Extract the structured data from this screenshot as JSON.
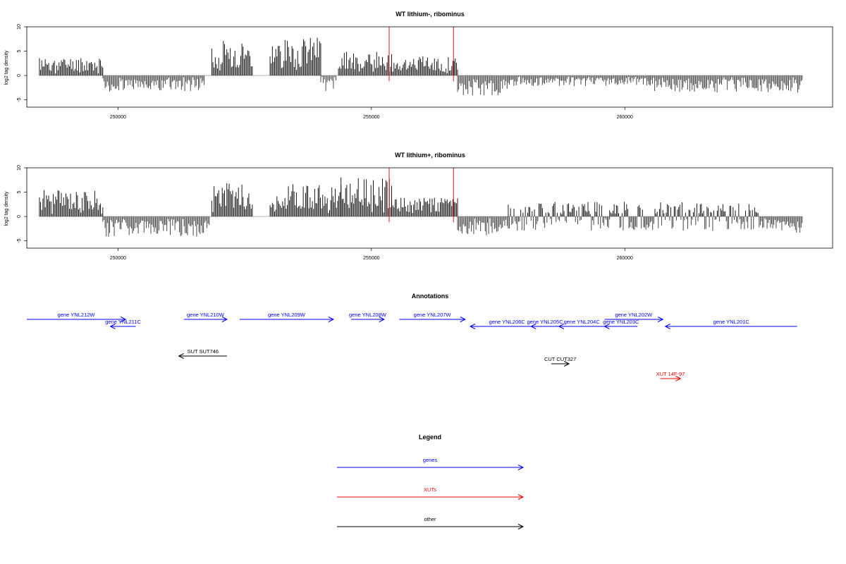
{
  "colors": {
    "positive_bar": "#000000",
    "negative_bar": "#333333",
    "marker": "#e31a1c",
    "genes": "#0000ff",
    "XUTs": "#ff0000",
    "other": "#000000"
  },
  "chart_data": [
    {
      "type": "bar",
      "title": "WT lithium-, ribominus",
      "xlabel": "",
      "ylabel": "log2 tag density",
      "xlim": [
        248200,
        264100
      ],
      "ylim": [
        -6.5,
        10
      ],
      "xticks": [
        250000,
        255000,
        260000
      ],
      "yticks": [
        -5,
        0,
        5,
        10
      ],
      "grid": false,
      "markers_x": [
        255350,
        256620
      ],
      "series": [
        {
          "x": [
            248450,
            249700
          ],
          "y": [
            3.5,
            3.2
          ],
          "seed": 11
        },
        {
          "x": [
            249700,
            251700
          ],
          "y": [
            -3.0,
            -3.0
          ],
          "seed": 12
        },
        {
          "x": [
            251850,
            252650
          ],
          "y": [
            7.5,
            6.0
          ],
          "seed": 13
        },
        {
          "x": [
            253000,
            254000
          ],
          "y": [
            6.5,
            7.5
          ],
          "seed": 14
        },
        {
          "x": [
            254000,
            254300
          ],
          "y": [
            -3.0,
            -3.0
          ],
          "seed": 15
        },
        {
          "x": [
            254350,
            255400
          ],
          "y": [
            4.5,
            4.5
          ],
          "seed": 16
        },
        {
          "x": [
            255400,
            256700
          ],
          "y": [
            3.8,
            3.5
          ],
          "seed": 17
        },
        {
          "x": [
            256700,
            257700
          ],
          "y": [
            -3.8,
            -3.8
          ],
          "seed": 18
        },
        {
          "x": [
            257700,
            260500
          ],
          "y": [
            -2.0,
            -2.0
          ],
          "seed": 19
        },
        {
          "x": [
            260500,
            263500
          ],
          "y": [
            -3.2,
            -3.2
          ],
          "seed": 20
        }
      ]
    },
    {
      "type": "bar",
      "title": "WT lithium+, ribominus",
      "xlabel": "",
      "ylabel": "log2 tag density",
      "xlim": [
        248200,
        264100
      ],
      "ylim": [
        -6.5,
        10
      ],
      "xticks": [
        250000,
        255000,
        260000
      ],
      "yticks": [
        -5,
        0,
        5,
        10
      ],
      "grid": false,
      "markers_x": [
        255350,
        256620
      ],
      "series": [
        {
          "x": [
            248450,
            249700
          ],
          "y": [
            5.0,
            5.0
          ],
          "seed": 31
        },
        {
          "x": [
            249700,
            251800
          ],
          "y": [
            -3.8,
            -3.8
          ],
          "seed": 32
        },
        {
          "x": [
            251850,
            252650
          ],
          "y": [
            6.5,
            6.0
          ],
          "seed": 33
        },
        {
          "x": [
            253000,
            254400
          ],
          "y": [
            6.5,
            6.5
          ],
          "seed": 34
        },
        {
          "x": [
            254400,
            255400
          ],
          "y": [
            7.5,
            7.5
          ],
          "seed": 35
        },
        {
          "x": [
            255400,
            256700
          ],
          "y": [
            3.5,
            3.5
          ],
          "seed": 36
        },
        {
          "x": [
            256700,
            257700
          ],
          "y": [
            -3.5,
            -3.5
          ],
          "seed": 37
        },
        {
          "x": [
            257700,
            259700
          ],
          "y": [
            2.0,
            -2.5
          ],
          "seed": 38
        },
        {
          "x": [
            259700,
            263500
          ],
          "y": [
            2.5,
            -3.5
          ],
          "seed": 39
        }
      ]
    }
  ],
  "annotations": {
    "title": "Annotations",
    "features": [
      {
        "label": "gene YNL212W",
        "start": 248200,
        "end": 250150,
        "strand": "+",
        "row": 0,
        "kind": "genes"
      },
      {
        "label": "gene YNL211C",
        "start": 250350,
        "end": 249850,
        "strand": "-",
        "row": 1,
        "kind": "genes"
      },
      {
        "label": "gene YNL210W",
        "start": 251300,
        "end": 252150,
        "strand": "+",
        "row": 0,
        "kind": "genes"
      },
      {
        "label": "gene YNL209W",
        "start": 252400,
        "end": 254250,
        "strand": "+",
        "row": 0,
        "kind": "genes"
      },
      {
        "label": "gene YNL208W",
        "start": 254600,
        "end": 255250,
        "strand": "+",
        "row": 0,
        "kind": "genes"
      },
      {
        "label": "gene YNL207W",
        "start": 255550,
        "end": 256850,
        "strand": "+",
        "row": 0,
        "kind": "genes"
      },
      {
        "label": "gene YNL206C",
        "start": 258400,
        "end": 256950,
        "strand": "-",
        "row": 1,
        "kind": "genes"
      },
      {
        "label": "gene YNL205C",
        "start": 258700,
        "end": 258150,
        "strand": "-",
        "row": 1,
        "kind": "genes"
      },
      {
        "label": "gene YNL204C",
        "start": 259600,
        "end": 258700,
        "strand": "-",
        "row": 1,
        "kind": "genes"
      },
      {
        "label": "gene YNL203C",
        "start": 260250,
        "end": 259600,
        "strand": "-",
        "row": 1,
        "kind": "genes"
      },
      {
        "label": "gene YNL202W",
        "start": 259600,
        "end": 260750,
        "strand": "+",
        "row": 0,
        "kind": "genes"
      },
      {
        "label": "gene YNL201C",
        "start": 263400,
        "end": 260800,
        "strand": "-",
        "row": 1,
        "kind": "genes"
      },
      {
        "label": "SUT SUT746",
        "start": 252150,
        "end": 251200,
        "strand": "-",
        "row": 2,
        "kind": "other"
      },
      {
        "label": "CUT CUT327",
        "start": 258550,
        "end": 258900,
        "strand": "+",
        "row": 3,
        "kind": "other"
      },
      {
        "label": "XUT 14F-97",
        "start": 260700,
        "end": 261100,
        "strand": "+",
        "row": 4,
        "kind": "XUTs"
      }
    ]
  },
  "legend": {
    "title": "Legend",
    "items": [
      {
        "label": "genes",
        "kind": "genes"
      },
      {
        "label": "XUTs",
        "kind": "XUTs"
      },
      {
        "label": "other",
        "kind": "other"
      }
    ]
  }
}
